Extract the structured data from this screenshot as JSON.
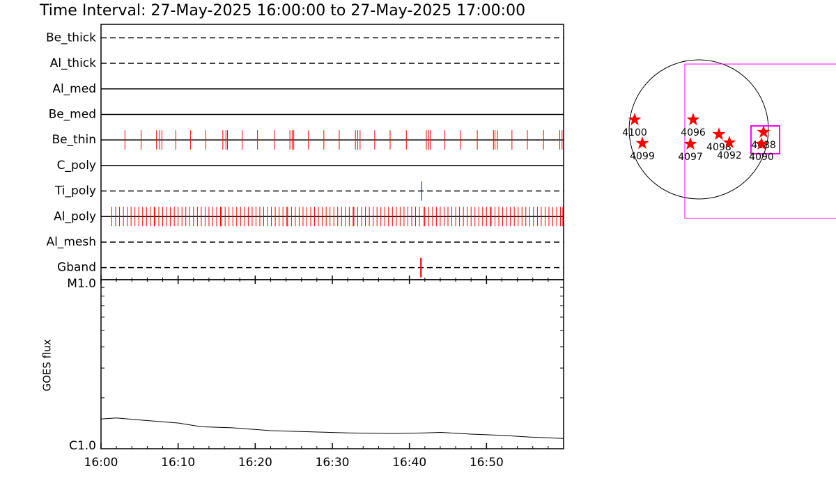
{
  "chart_data": [
    {
      "type": "timeline",
      "title": "Time Interval: 27-May-2025 16:00:00 to 27-May-2025 17:00:00",
      "xlim": [
        0,
        60
      ],
      "xticks": [
        {
          "value": 0,
          "label": "16:00"
        },
        {
          "value": 10,
          "label": "16:10"
        },
        {
          "value": 20,
          "label": "16:20"
        },
        {
          "value": 30,
          "label": "16:30"
        },
        {
          "value": 40,
          "label": "16:40"
        },
        {
          "value": 50,
          "label": "16:50"
        }
      ],
      "xminor_step": 2,
      "rows": [
        {
          "name": "Be_thick",
          "line": "dashed",
          "color": "#ff0000",
          "events": []
        },
        {
          "name": "Al_thick",
          "line": "dashed",
          "color": "#ff0000",
          "events": []
        },
        {
          "name": "Al_med",
          "line": "solid",
          "color": "#ff0000",
          "events": []
        },
        {
          "name": "Be_med",
          "line": "solid",
          "color": "#ff0000",
          "events": []
        },
        {
          "name": "Be_thin",
          "line": "solid",
          "color": "#ff0000",
          "events": [
            3.1,
            5.2,
            7.2,
            7.6,
            7.9,
            9.7,
            11.6,
            13.6,
            15.8,
            16.2,
            16.4,
            18.3,
            20.3,
            22.5,
            24.5,
            24.8,
            25.0,
            26.9,
            28.9,
            30.9,
            33.0,
            33.3,
            33.6,
            35.5,
            37.5,
            39.6,
            42.2,
            42.5,
            42.7,
            44.6,
            46.6,
            48.8,
            50.9,
            51.1,
            51.4,
            53.3,
            55.3,
            57.4,
            59.5,
            59.8
          ]
        },
        {
          "name": "C_poly",
          "line": "solid",
          "color": "#ff0000",
          "events": []
        },
        {
          "name": "Ti_poly",
          "line": "dashed",
          "color": "#0000ff",
          "events": [
            41.6
          ]
        },
        {
          "name": "Al_poly",
          "line": "solid",
          "color": "#ff0000",
          "events": [
            1.4,
            1.9,
            2.4,
            2.9,
            3.4,
            3.9,
            4.4,
            4.9,
            5.4,
            5.9,
            6.4,
            6.9,
            7.0,
            7.5,
            8.0,
            8.5,
            9.0,
            9.5,
            10.0,
            10.5,
            11.0,
            11.5,
            12.0,
            12.5,
            13.0,
            13.5,
            14.0,
            14.5,
            15.0,
            15.5,
            15.6,
            16.1,
            16.6,
            17.1,
            17.6,
            18.1,
            18.6,
            19.1,
            19.6,
            20.1,
            20.6,
            21.1,
            21.6,
            22.1,
            22.6,
            23.1,
            23.6,
            24.1,
            24.2,
            24.7,
            25.2,
            25.7,
            26.2,
            26.7,
            27.2,
            27.7,
            28.2,
            28.7,
            29.2,
            29.7,
            30.2,
            30.7,
            31.2,
            31.7,
            32.2,
            32.7,
            32.8,
            33.3,
            33.8,
            34.3,
            34.8,
            35.3,
            35.8,
            36.3,
            36.8,
            37.3,
            37.8,
            38.3,
            38.8,
            39.3,
            39.8,
            40.3,
            40.8,
            41.3,
            41.9,
            42.0,
            42.5,
            43.0,
            43.5,
            44.0,
            44.5,
            45.0,
            45.5,
            46.0,
            46.5,
            47.0,
            47.5,
            48.0,
            48.5,
            49.0,
            49.5,
            50.0,
            50.5,
            50.6,
            51.1,
            51.6,
            52.1,
            52.6,
            53.1,
            53.6,
            54.1,
            54.6,
            55.1,
            55.6,
            56.1,
            56.6,
            57.1,
            57.6,
            58.1,
            58.6,
            59.1,
            59.6,
            59.9
          ]
        },
        {
          "name": "Al_mesh",
          "line": "dashed",
          "color": "#ff0000",
          "events": []
        },
        {
          "name": "Gband",
          "line": "dashed",
          "color": "#ff0000",
          "events": [
            41.5
          ]
        }
      ]
    },
    {
      "type": "line",
      "ylabel": "GOES flux",
      "log_y": true,
      "xlim": [
        0,
        60
      ],
      "ylim": [
        1e-06,
        1e-05
      ],
      "yticks": [
        {
          "value": 1e-06,
          "label": "C1.0"
        },
        {
          "value": 1e-05,
          "label": "M1.0"
        }
      ],
      "yminor": [
        2e-06,
        3e-06,
        4e-06,
        5e-06,
        6e-06,
        7e-06,
        8e-06,
        9e-06
      ],
      "color": "#000000",
      "x": [
        0,
        2,
        5,
        10,
        13,
        17,
        22,
        27,
        32,
        38,
        42,
        44,
        48,
        52,
        56,
        60
      ],
      "values": [
        1.5e-06,
        1.52e-06,
        1.48e-06,
        1.42e-06,
        1.35e-06,
        1.33e-06,
        1.28e-06,
        1.26e-06,
        1.24e-06,
        1.23e-06,
        1.24e-06,
        1.25e-06,
        1.22e-06,
        1.2e-06,
        1.17e-06,
        1.15e-06
      ]
    },
    {
      "type": "scatter",
      "disk_radius": 960,
      "color": "#ff0000",
      "box_color": "#ff00ff",
      "labels": [
        "4100",
        "4099",
        "4096",
        "4097",
        "4098",
        "4092",
        "4088",
        "4090"
      ],
      "x": [
        -883,
        -778,
        -77,
        -115,
        278,
        422,
        893,
        864
      ],
      "y": [
        134,
        -192,
        134,
        -202,
        -67,
        -182,
        -38,
        -202
      ],
      "boxes": [
        [
          -192,
          902,
          2000,
          -1229
        ],
        [
          720,
          48,
          1114,
          -336
        ]
      ]
    }
  ]
}
